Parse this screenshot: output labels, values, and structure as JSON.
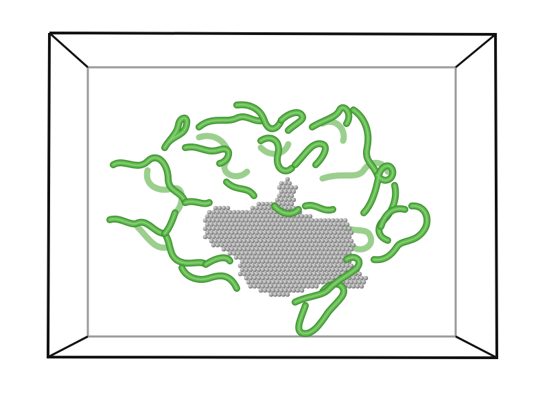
{
  "scene": {
    "background": "#ffffff",
    "colors": {
      "box_front": "#111111",
      "box_back": "#9a9a9a",
      "ribbon_dark": "#3f8f32",
      "ribbon": "#5cb84a",
      "ribbon_light": "#8fd27c",
      "ribbon_faded": "#9bcf8e",
      "pocket_dark": "#6e6e6e",
      "pocket": "#a6a6a6",
      "pocket_light": "#e0e0e0"
    },
    "objects": [
      {
        "name": "bounding-box",
        "kind": "wireframe-cuboid"
      },
      {
        "name": "protein-backbone",
        "kind": "cartoon-tube"
      },
      {
        "name": "binding-pocket",
        "kind": "sphere-cluster"
      }
    ]
  }
}
